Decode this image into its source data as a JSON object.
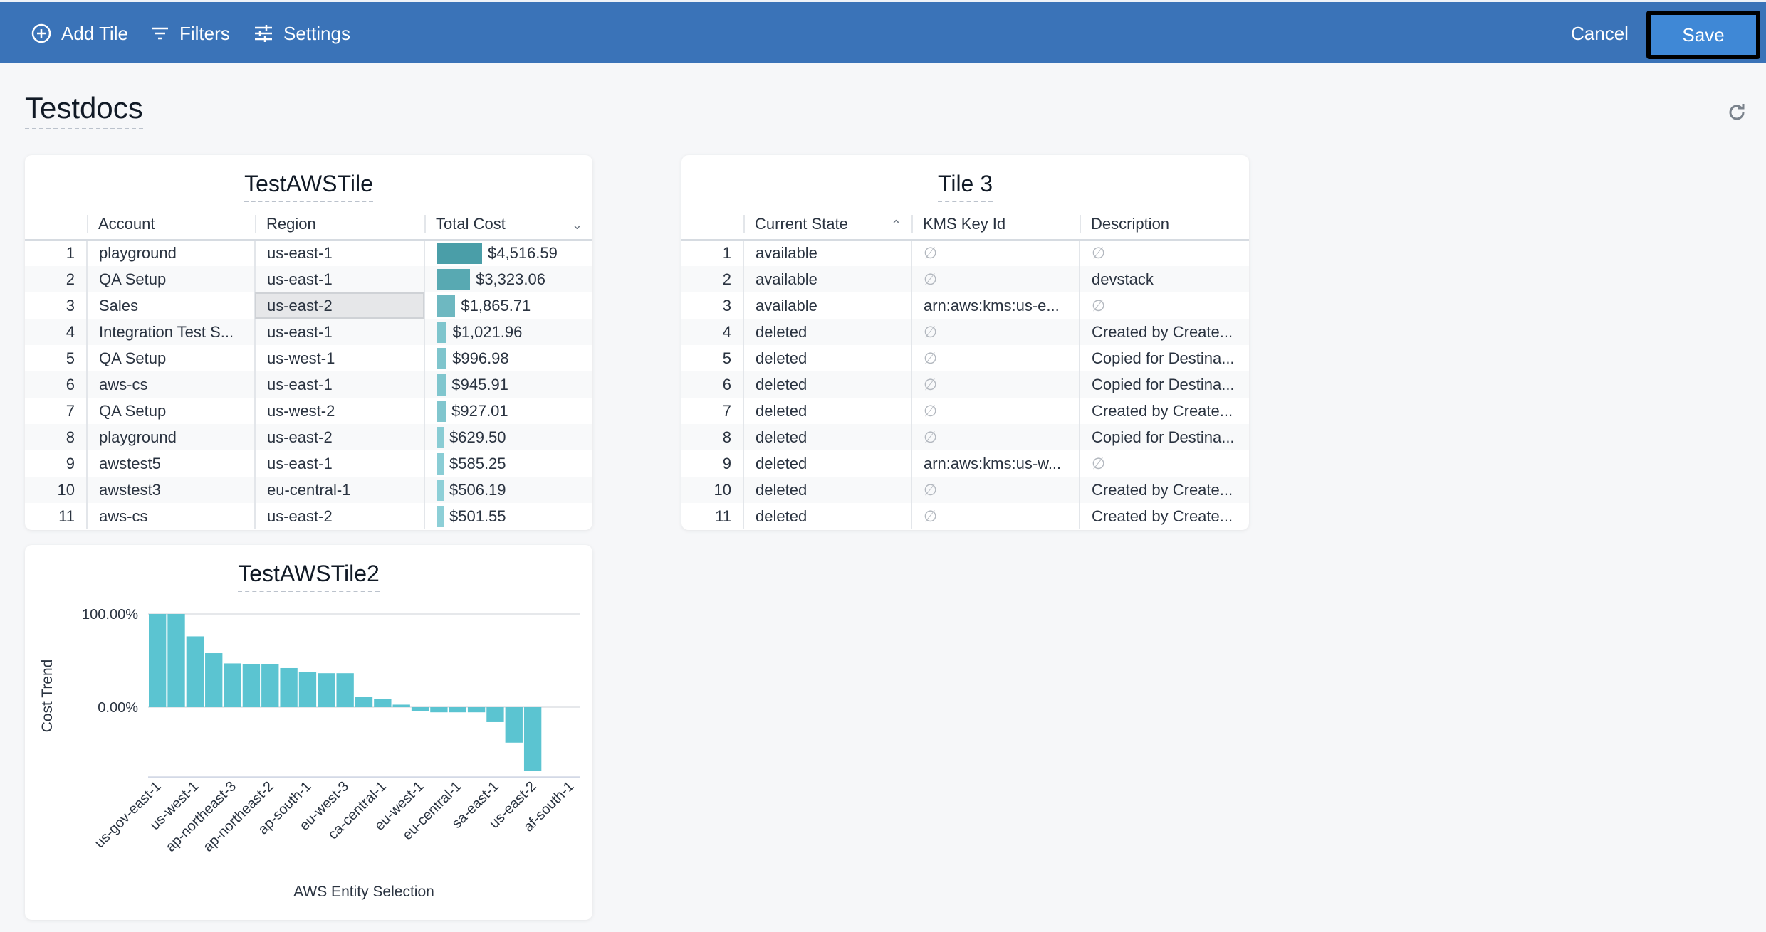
{
  "toolbar": {
    "add_tile": "Add Tile",
    "filters": "Filters",
    "settings": "Settings",
    "cancel": "Cancel",
    "save": "Save"
  },
  "page": {
    "title": "Testdocs"
  },
  "tile1": {
    "title": "TestAWSTile",
    "columns": [
      "Account",
      "Region",
      "Total Cost"
    ],
    "sort": "descending",
    "rows": [
      {
        "n": "1",
        "account": "playground",
        "region": "us-east-1",
        "cost": "$4,516.59",
        "value": 4516.59
      },
      {
        "n": "2",
        "account": "QA Setup",
        "region": "us-east-1",
        "cost": "$3,323.06",
        "value": 3323.06
      },
      {
        "n": "3",
        "account": "Sales",
        "region": "us-east-2",
        "cost": "$1,865.71",
        "value": 1865.71
      },
      {
        "n": "4",
        "account": "Integration Test S...",
        "region": "us-east-1",
        "cost": "$1,021.96",
        "value": 1021.96
      },
      {
        "n": "5",
        "account": "QA Setup",
        "region": "us-west-1",
        "cost": "$996.98",
        "value": 996.98
      },
      {
        "n": "6",
        "account": "aws-cs",
        "region": "us-east-1",
        "cost": "$945.91",
        "value": 945.91
      },
      {
        "n": "7",
        "account": "QA Setup",
        "region": "us-west-2",
        "cost": "$927.01",
        "value": 927.01
      },
      {
        "n": "8",
        "account": "playground",
        "region": "us-east-2",
        "cost": "$629.50",
        "value": 629.5
      },
      {
        "n": "9",
        "account": "awstest5",
        "region": "us-east-1",
        "cost": "$585.25",
        "value": 585.25
      },
      {
        "n": "10",
        "account": "awstest3",
        "region": "eu-central-1",
        "cost": "$506.19",
        "value": 506.19
      },
      {
        "n": "11",
        "account": "aws-cs",
        "region": "us-east-2",
        "cost": "$501.55",
        "value": 501.55
      }
    ]
  },
  "tile3": {
    "title": "Tile 3",
    "columns": [
      "Current State",
      "KMS Key Id",
      "Description"
    ],
    "sort": "ascending",
    "rows": [
      {
        "n": "1",
        "state": "available",
        "kms": "∅",
        "desc": "∅"
      },
      {
        "n": "2",
        "state": "available",
        "kms": "∅",
        "desc": "devstack"
      },
      {
        "n": "3",
        "state": "available",
        "kms": "arn:aws:kms:us-e...",
        "desc": "∅"
      },
      {
        "n": "4",
        "state": "deleted",
        "kms": "∅",
        "desc": "Created by Create..."
      },
      {
        "n": "5",
        "state": "deleted",
        "kms": "∅",
        "desc": "Copied for Destina..."
      },
      {
        "n": "6",
        "state": "deleted",
        "kms": "∅",
        "desc": "Copied for Destina..."
      },
      {
        "n": "7",
        "state": "deleted",
        "kms": "∅",
        "desc": "Created by Create..."
      },
      {
        "n": "8",
        "state": "deleted",
        "kms": "∅",
        "desc": "Copied for Destina..."
      },
      {
        "n": "9",
        "state": "deleted",
        "kms": "arn:aws:kms:us-w...",
        "desc": "∅"
      },
      {
        "n": "10",
        "state": "deleted",
        "kms": "∅",
        "desc": "Created by Create..."
      },
      {
        "n": "11",
        "state": "deleted",
        "kms": "∅",
        "desc": "Created by Create..."
      }
    ]
  },
  "chart_data": {
    "type": "bar",
    "title": "TestAWSTile2",
    "xlabel": "AWS Entity Selection",
    "ylabel": "Cost Trend",
    "ylim": [
      -75,
      100
    ],
    "yticks": [
      {
        "v": 100,
        "label": "100.00%"
      },
      {
        "v": 0,
        "label": "0.00%"
      }
    ],
    "grid": true,
    "color": "#5bc4d1",
    "categories": [
      "us-gov-east-1",
      "",
      "us-west-1",
      "",
      "ap-northeast-3",
      "",
      "ap-northeast-2",
      "",
      "ap-south-1",
      "",
      "eu-west-3",
      "",
      "ca-central-1",
      "",
      "eu-west-1",
      "",
      "eu-central-1",
      "",
      "sa-east-1",
      "",
      "us-east-2",
      "",
      "af-south-1"
    ],
    "values": [
      100,
      100,
      76,
      58,
      47,
      46,
      46,
      42,
      38,
      36.5,
      36.5,
      11,
      8.5,
      2.7,
      -4,
      -5.5,
      -5.5,
      -5.5,
      -16,
      -38,
      -68,
      null,
      null
    ]
  }
}
